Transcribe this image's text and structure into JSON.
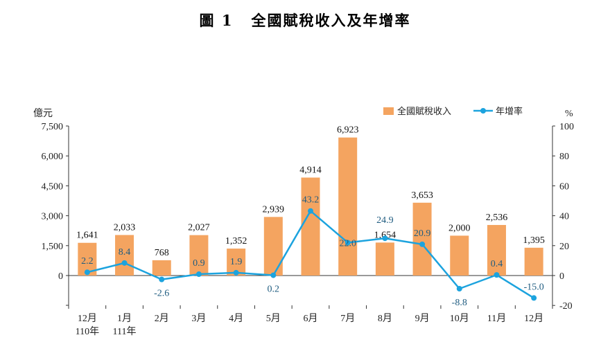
{
  "page": {
    "figure_label": "圖 1",
    "figure_title": "全國賦稅收入及年增率"
  },
  "chart_data": {
    "type": "bar+line",
    "title": "全國賦稅收入及年增率",
    "categories": [
      "12月",
      "1月",
      "2月",
      "3月",
      "4月",
      "5月",
      "6月",
      "7月",
      "8月",
      "9月",
      "10月",
      "11月",
      "12月"
    ],
    "category_sublabels": [
      "110年",
      "111年",
      "",
      "",
      "",
      "",
      "",
      "",
      "",
      "",
      "",
      "",
      ""
    ],
    "series": [
      {
        "name": "全國賦稅收入",
        "type": "bar",
        "axis": "left",
        "color": "#F4A460",
        "values": [
          1641,
          2033,
          768,
          2027,
          1352,
          2939,
          4914,
          6923,
          1654,
          3653,
          2000,
          2536,
          1395
        ],
        "labels": [
          "1,641",
          "2,033",
          "768",
          "2,027",
          "1,352",
          "2,939",
          "4,914",
          "6,923",
          "1,654",
          "3,653",
          "2,000",
          "2,536",
          "1,395"
        ]
      },
      {
        "name": "年增率",
        "type": "line",
        "axis": "right",
        "color": "#1CA3DE",
        "values": [
          2.2,
          8.4,
          -2.6,
          0.9,
          1.9,
          0.2,
          43.2,
          22.0,
          24.9,
          20.9,
          -8.8,
          0.4,
          -15.0
        ],
        "labels": [
          "2.2",
          "8.4",
          "-2.6",
          "0.9",
          "1.9",
          "0.2",
          "43.2",
          "22.0",
          "24.9",
          "20.9",
          "-8.8",
          "0.4",
          "-15.0"
        ]
      }
    ],
    "y_left": {
      "unit": "億元",
      "min": -1500,
      "max": 7500,
      "ticks": [
        0,
        1500,
        3000,
        4500,
        6000,
        7500
      ],
      "tick_labels": [
        "0",
        "1,500",
        "3,000",
        "4,500",
        "6,000",
        "7,500"
      ]
    },
    "y_right": {
      "unit": "%",
      "min": -20,
      "max": 100,
      "ticks": [
        -20,
        0,
        20,
        40,
        60,
        80,
        100
      ],
      "tick_labels": [
        "-20",
        "0",
        "20",
        "40",
        "60",
        "80",
        "100"
      ]
    },
    "legend": {
      "position": "top-right"
    },
    "grid": false
  }
}
